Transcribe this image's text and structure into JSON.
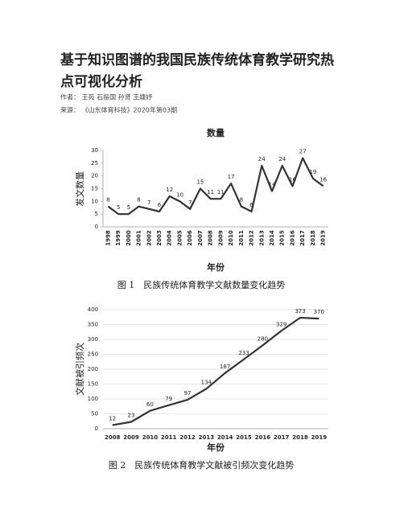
{
  "header": {
    "title": "基于知识图谱的我国民族传统体育教学研究热点可视化分析",
    "author": "作者： 王苑 石振国 孙贤 王婕妤",
    "source": "来源： 《山东体育科技》2020年第03期"
  },
  "chart_data": [
    {
      "type": "line",
      "title": "数量",
      "y_label": "发文数量",
      "x_label": "年份",
      "caption": "图 1　民族传统体育教学文献数量变化趋势",
      "categories": [
        "1998",
        "1999",
        "2000",
        "2001",
        "2002",
        "2003",
        "2004",
        "2005",
        "2006",
        "2007",
        "2008",
        "2009",
        "2010",
        "2011",
        "2012",
        "2013",
        "2014",
        "2015",
        "2016",
        "2017",
        "2018",
        "2019"
      ],
      "values": [
        8,
        5,
        5,
        8,
        7,
        6,
        12,
        10,
        7,
        15,
        11,
        11,
        17,
        8,
        6,
        24,
        14,
        24,
        16,
        27,
        19,
        16
      ],
      "color": "#333333",
      "ylim": [
        0,
        30
      ],
      "yticks": [
        0,
        5,
        10,
        15,
        20,
        25,
        30
      ],
      "grid": false
    },
    {
      "type": "line",
      "y_label": "文献被引频次",
      "x_label": "年份",
      "caption": "图 2　民族传统体育教学文献被引频次变化趋势",
      "categories": [
        "2008",
        "2009",
        "2010",
        "2011",
        "2012",
        "2013",
        "2014",
        "2015",
        "2016",
        "2017",
        "2018",
        "2019"
      ],
      "values": [
        12,
        23,
        60,
        79,
        97,
        134,
        187,
        233,
        280,
        329,
        373,
        370
      ],
      "color": "#333333",
      "ylim": [
        0,
        400
      ],
      "yticks": [
        0,
        50,
        100,
        150,
        200,
        250,
        300,
        350,
        400
      ],
      "grid": true
    }
  ]
}
